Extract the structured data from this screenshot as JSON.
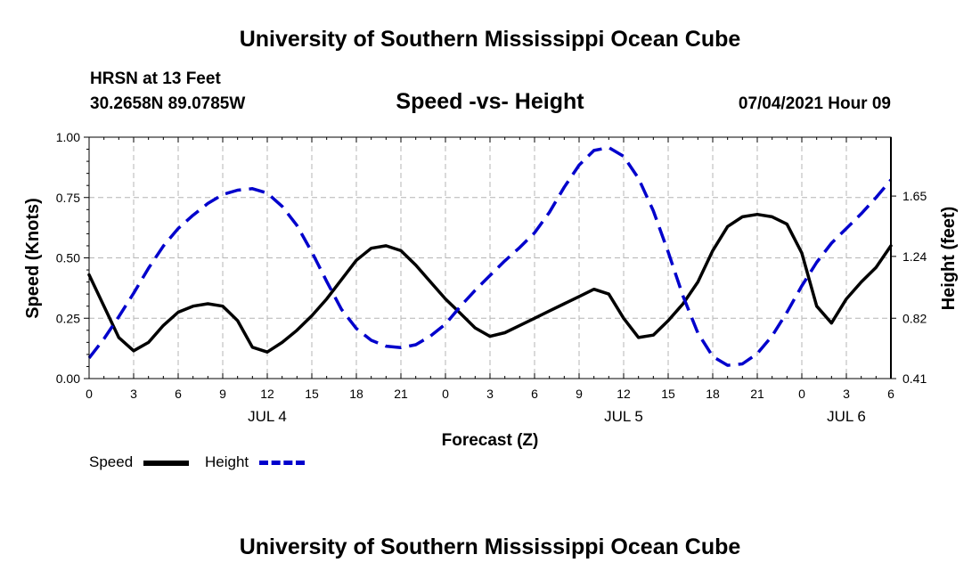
{
  "header": {
    "title": "University of Southern Mississippi Ocean Cube",
    "station": "HRSN at 13 Feet",
    "coords": "30.2658N  89.0785W",
    "subtitle": "Speed -vs- Height",
    "timestamp": "07/04/2021 Hour 09"
  },
  "footer": {
    "title": "University of Southern Mississippi Ocean Cube"
  },
  "legend": {
    "speed_label": "Speed",
    "height_label": "Height"
  },
  "colors": {
    "speed": "#000000",
    "height": "#0000cc",
    "grid": "#b4b4b4"
  },
  "chart_data": {
    "type": "line",
    "title": "Speed -vs- Height",
    "xlabel": "Forecast (Z)",
    "ylabel": "Speed (Knots)",
    "y2label": "Height (feet)",
    "xlim": [
      0,
      54
    ],
    "ylim": [
      0,
      1
    ],
    "y2lim": [
      0.41,
      2.05
    ],
    "x_ticks": [
      0,
      3,
      6,
      9,
      12,
      15,
      18,
      21,
      24,
      27,
      30,
      33,
      36,
      39,
      42,
      45,
      48,
      51,
      54
    ],
    "x_tick_labels": [
      "0",
      "3",
      "6",
      "9",
      "12",
      "15",
      "18",
      "21",
      "0",
      "3",
      "6",
      "9",
      "12",
      "15",
      "18",
      "21",
      "0",
      "3",
      "6"
    ],
    "date_labels": [
      {
        "x": 12,
        "label": "JUL 4"
      },
      {
        "x": 36,
        "label": "JUL 5"
      },
      {
        "x": 51,
        "label": "JUL 6"
      }
    ],
    "y_ticks": [
      0,
      0.25,
      0.5,
      0.75,
      1.0
    ],
    "y_tick_labels": [
      "0.00",
      "0.25",
      "0.50",
      "0.75",
      "1.00"
    ],
    "y2_ticks": [
      0.41,
      0.82,
      1.24,
      1.65
    ],
    "y2_tick_labels": [
      "0.41",
      "0.82",
      "1.24",
      "1.65"
    ],
    "grid": true,
    "series": [
      {
        "name": "Speed",
        "axis": "left",
        "style": "solid",
        "x": [
          0,
          1,
          2,
          3,
          4,
          5,
          6,
          7,
          8,
          9,
          10,
          11,
          12,
          13,
          14,
          15,
          16,
          17,
          18,
          19,
          20,
          21,
          22,
          23,
          24,
          25,
          26,
          27,
          28,
          29,
          30,
          31,
          32,
          33,
          34,
          35,
          36,
          37,
          38,
          39,
          40,
          41,
          42,
          43,
          44,
          45,
          46,
          47,
          48,
          49,
          50,
          51,
          52,
          53,
          54
        ],
        "values": [
          0.43,
          0.3,
          0.17,
          0.115,
          0.15,
          0.22,
          0.275,
          0.3,
          0.31,
          0.3,
          0.24,
          0.13,
          0.11,
          0.15,
          0.2,
          0.26,
          0.33,
          0.41,
          0.49,
          0.54,
          0.55,
          0.53,
          0.47,
          0.4,
          0.33,
          0.27,
          0.21,
          0.175,
          0.19,
          0.22,
          0.25,
          0.28,
          0.31,
          0.34,
          0.37,
          0.35,
          0.25,
          0.17,
          0.18,
          0.24,
          0.31,
          0.4,
          0.53,
          0.63,
          0.67,
          0.68,
          0.67,
          0.64,
          0.52,
          0.3,
          0.23,
          0.33,
          0.4,
          0.46,
          0.55
        ]
      },
      {
        "name": "Height",
        "axis": "right",
        "style": "dashed",
        "x": [
          0,
          1,
          2,
          3,
          4,
          5,
          6,
          7,
          8,
          9,
          10,
          11,
          12,
          13,
          14,
          15,
          16,
          17,
          18,
          19,
          20,
          21,
          22,
          23,
          24,
          25,
          26,
          27,
          28,
          29,
          30,
          31,
          32,
          33,
          34,
          35,
          36,
          37,
          38,
          39,
          40,
          41,
          42,
          43,
          44,
          45,
          46,
          47,
          48,
          49,
          50,
          51,
          52,
          53,
          54
        ],
        "values": [
          0.55,
          0.68,
          0.83,
          0.99,
          1.16,
          1.31,
          1.43,
          1.52,
          1.6,
          1.66,
          1.69,
          1.7,
          1.67,
          1.58,
          1.45,
          1.27,
          1.07,
          0.88,
          0.75,
          0.67,
          0.63,
          0.62,
          0.64,
          0.7,
          0.78,
          0.9,
          1.01,
          1.11,
          1.21,
          1.3,
          1.4,
          1.54,
          1.71,
          1.86,
          1.96,
          1.98,
          1.92,
          1.77,
          1.55,
          1.27,
          0.97,
          0.72,
          0.56,
          0.5,
          0.51,
          0.58,
          0.7,
          0.86,
          1.04,
          1.2,
          1.33,
          1.43,
          1.53,
          1.64,
          1.76
        ]
      }
    ]
  }
}
